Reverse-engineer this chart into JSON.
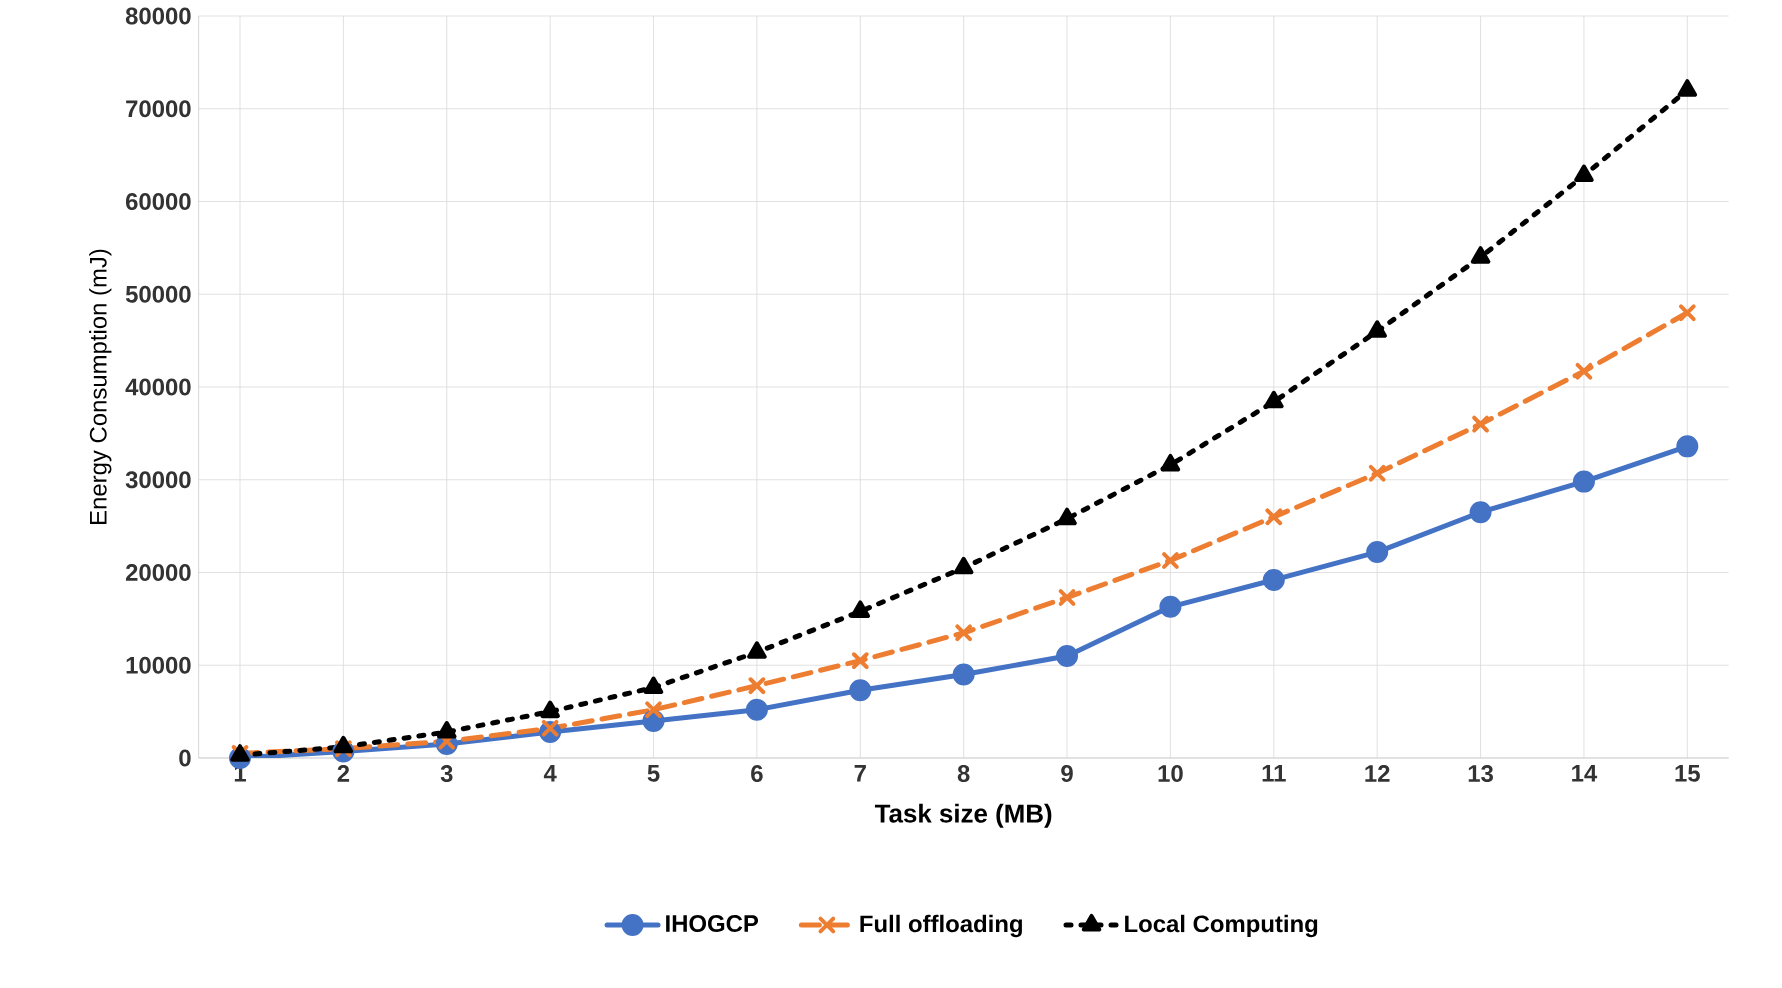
{
  "chart_data": {
    "type": "line",
    "xlabel": "Task size (MB)",
    "ylabel": "Energy Consumption (mJ)",
    "categories": [
      "1",
      "2",
      "3",
      "4",
      "5",
      "6",
      "7",
      "8",
      "9",
      "10",
      "11",
      "12",
      "13",
      "14",
      "15"
    ],
    "ylim": [
      0,
      80000
    ],
    "yticks": [
      0,
      10000,
      20000,
      30000,
      40000,
      50000,
      60000,
      70000,
      80000
    ],
    "grid": true,
    "legend": "bottom",
    "series": [
      {
        "name": "IHOGCP",
        "color": "#4472c4",
        "marker": "circle",
        "line_style": "solid",
        "values": [
          0,
          700,
          1500,
          2800,
          4000,
          5200,
          7300,
          9000,
          11000,
          16300,
          19200,
          22200,
          26500,
          29800,
          33600
        ]
      },
      {
        "name": "Full offloading",
        "color": "#ed7d31",
        "marker": "cross",
        "line_style": "dashed",
        "values": [
          500,
          1000,
          1800,
          3200,
          5200,
          7800,
          10500,
          13500,
          17300,
          21300,
          26000,
          30700,
          36000,
          41700,
          48000
        ]
      },
      {
        "name": "Local Computing",
        "color": "#000000",
        "marker": "triangle",
        "line_style": "dotted",
        "values": [
          300,
          1200,
          2800,
          5000,
          7600,
          11400,
          15800,
          20500,
          25800,
          31600,
          38400,
          46000,
          54000,
          62800,
          72000
        ]
      }
    ]
  }
}
